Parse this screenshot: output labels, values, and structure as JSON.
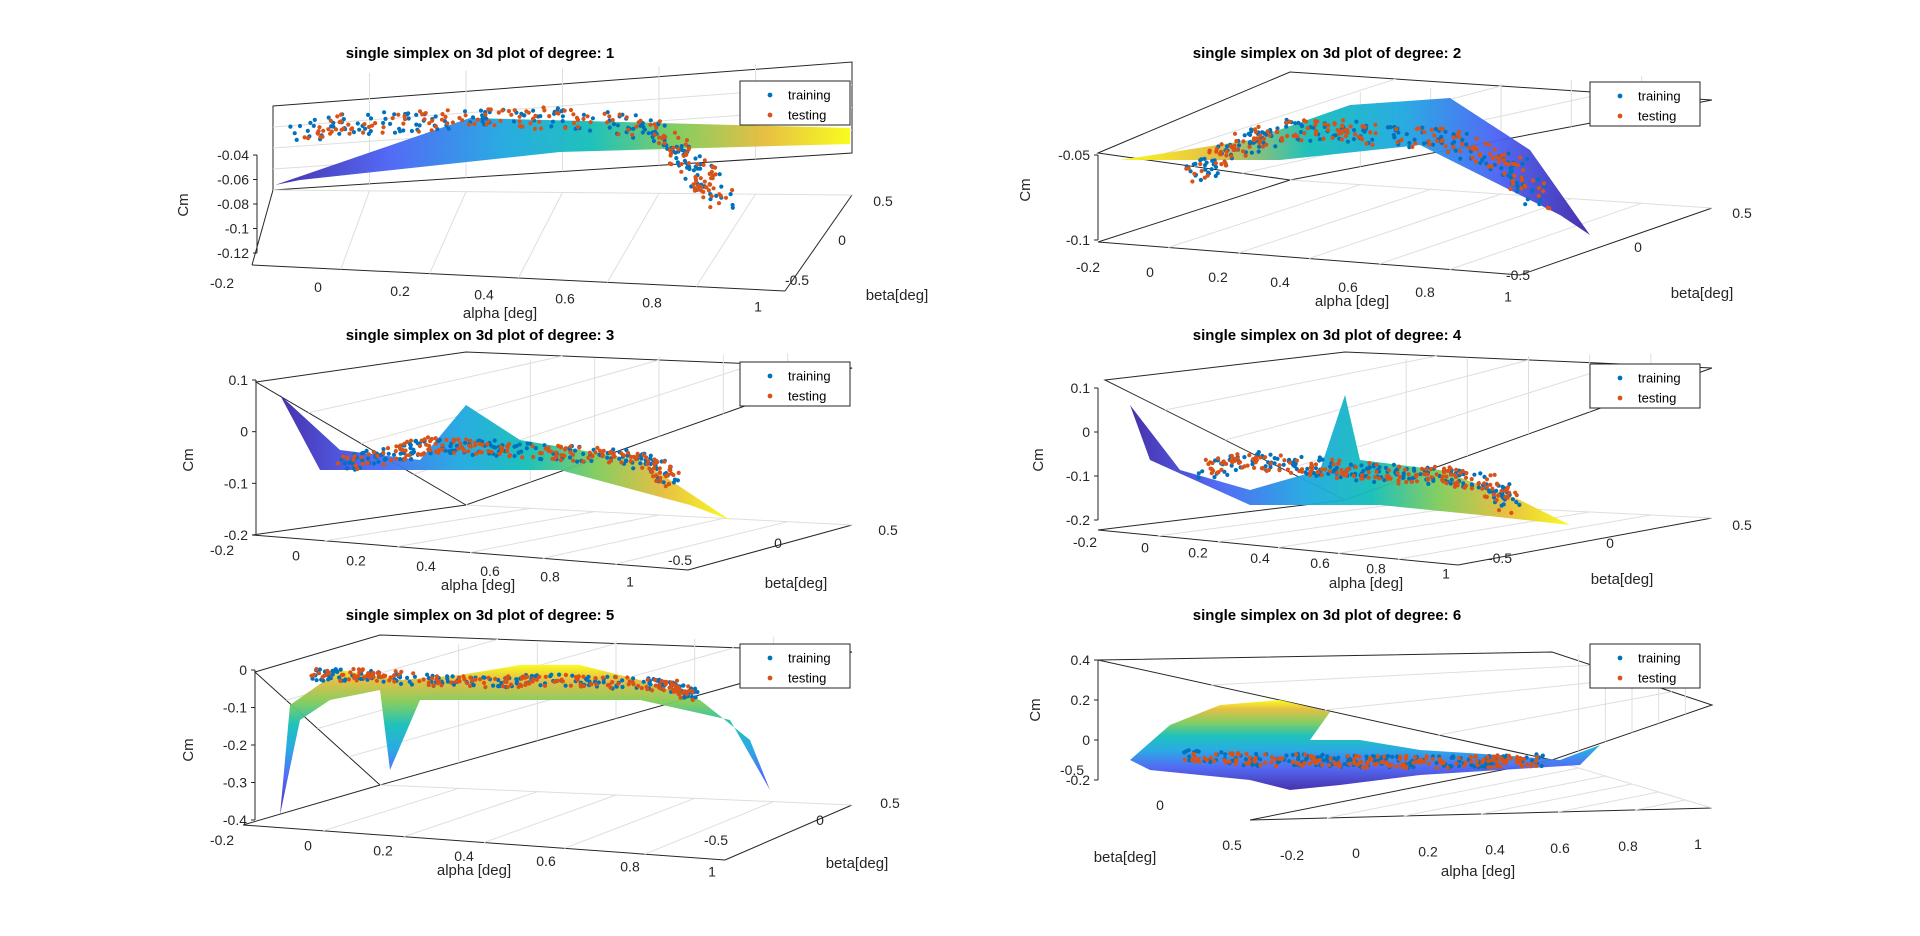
{
  "figure": {
    "background": "#ffffff",
    "colors": {
      "training": "#0072BD",
      "testing": "#D95319",
      "surface_colormap": [
        "#3E26A8",
        "#4A63F5",
        "#1EA8E0",
        "#13BEB8",
        "#7ECB5A",
        "#E5BC3A",
        "#F9FB15"
      ]
    }
  },
  "chart_data": [
    {
      "type": "scatter",
      "title": "single simplex on 3d plot of degree: 1",
      "xlabel": "alpha [deg]",
      "ylabel": "beta[deg]",
      "zlabel": "Cm",
      "xticks": [
        "-0.2",
        "0",
        "0.2",
        "0.4",
        "0.6",
        "0.8",
        "1"
      ],
      "yticks": [
        "-0.5",
        "0",
        "0.5"
      ],
      "zticks": [
        "-0.12",
        "-0.1",
        "-0.08",
        "-0.06",
        "-0.04"
      ],
      "legend": [
        "training",
        "testing"
      ],
      "legend_position": "top-right",
      "grid": true
    },
    {
      "type": "scatter",
      "title": "single simplex on 3d plot of degree: 2",
      "xlabel": "alpha [deg]",
      "ylabel": "beta[deg]",
      "zlabel": "Cm",
      "xticks": [
        "-0.2",
        "0",
        "0.2",
        "0.4",
        "0.6",
        "0.8",
        "1"
      ],
      "yticks": [
        "-0.5",
        "0",
        "0.5"
      ],
      "zticks": [
        "-0.1",
        "-0.05"
      ],
      "legend": [
        "training",
        "testing"
      ],
      "legend_position": "top-right",
      "grid": true
    },
    {
      "type": "scatter",
      "title": "single simplex on 3d plot of degree: 3",
      "xlabel": "alpha [deg]",
      "ylabel": "beta[deg]",
      "zlabel": "Cm",
      "xticks": [
        "-0.2",
        "0",
        "0.2",
        "0.4",
        "0.6",
        "0.8",
        "1"
      ],
      "yticks": [
        "-0.5",
        "0",
        "0.5"
      ],
      "zticks": [
        "-0.2",
        "-0.1",
        "0",
        "0.1"
      ],
      "legend": [
        "training",
        "testing"
      ],
      "legend_position": "top-right",
      "grid": true
    },
    {
      "type": "scatter",
      "title": "single simplex on 3d plot of degree: 4",
      "xlabel": "alpha [deg]",
      "ylabel": "beta[deg]",
      "zlabel": "Cm",
      "xticks": [
        "-0.2",
        "0",
        "0.2",
        "0.4",
        "0.6",
        "0.8",
        "1"
      ],
      "yticks": [
        "-0.5",
        "0",
        "0.5"
      ],
      "zticks": [
        "-0.2",
        "-0.1",
        "0",
        "0.1"
      ],
      "legend": [
        "training",
        "testing"
      ],
      "legend_position": "top-right",
      "grid": true
    },
    {
      "type": "scatter",
      "title": "single simplex on 3d plot of degree: 5",
      "xlabel": "alpha [deg]",
      "ylabel": "beta[deg]",
      "zlabel": "Cm",
      "xticks": [
        "-0.2",
        "0",
        "0.2",
        "0.4",
        "0.6",
        "0.8",
        "1"
      ],
      "yticks": [
        "-0.5",
        "0",
        "0.5"
      ],
      "zticks": [
        "-0.4",
        "-0.3",
        "-0.2",
        "-0.1",
        "0"
      ],
      "legend": [
        "training",
        "testing"
      ],
      "legend_position": "top-right",
      "grid": true
    },
    {
      "type": "scatter",
      "title": "single simplex on 3d plot of degree: 6",
      "xlabel": "alpha [deg]",
      "ylabel": "beta[deg]",
      "zlabel": "Cm",
      "xticks": [
        "-0.2",
        "0",
        "0.2",
        "0.4",
        "0.6",
        "0.8",
        "1"
      ],
      "yticks": [
        "-0.5",
        "0",
        "0.5"
      ],
      "zticks": [
        "-0.2",
        "0",
        "0.2",
        "0.4"
      ],
      "legend": [
        "training",
        "testing"
      ],
      "legend_position": "top-right",
      "grid": true
    }
  ]
}
